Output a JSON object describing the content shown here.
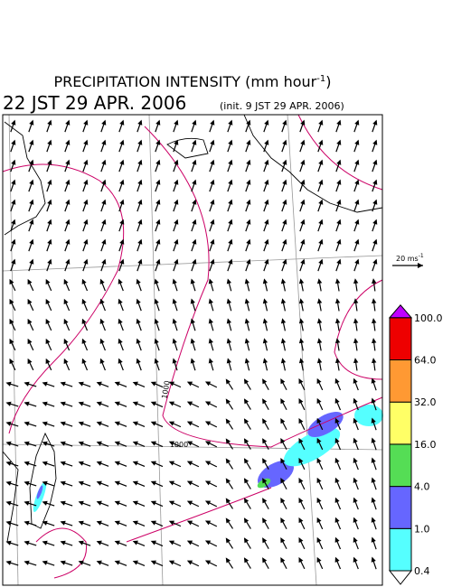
{
  "header": {
    "title": "PRECIPITATION INTENSITY (mm hour",
    "title_sup": "-1",
    "title_end": ")",
    "date": "22 JST 29 APR. 2006",
    "init": "(init. 9 JST 29 APR. 2006)"
  },
  "wind_scale": {
    "label": "20 ms",
    "label_sup": "-1"
  },
  "legend": {
    "levels": [
      "0.4",
      "1.0",
      "4.0",
      "16.0",
      "32.0",
      "64.0",
      "100.0"
    ],
    "colors": [
      "#ffffff",
      "#55ffff",
      "#6666ff",
      "#55dd55",
      "#ffff66",
      "#ff9933",
      "#ee0000",
      "#c000ff"
    ]
  },
  "isobar_labels": [
    "1000",
    "1000"
  ]
}
